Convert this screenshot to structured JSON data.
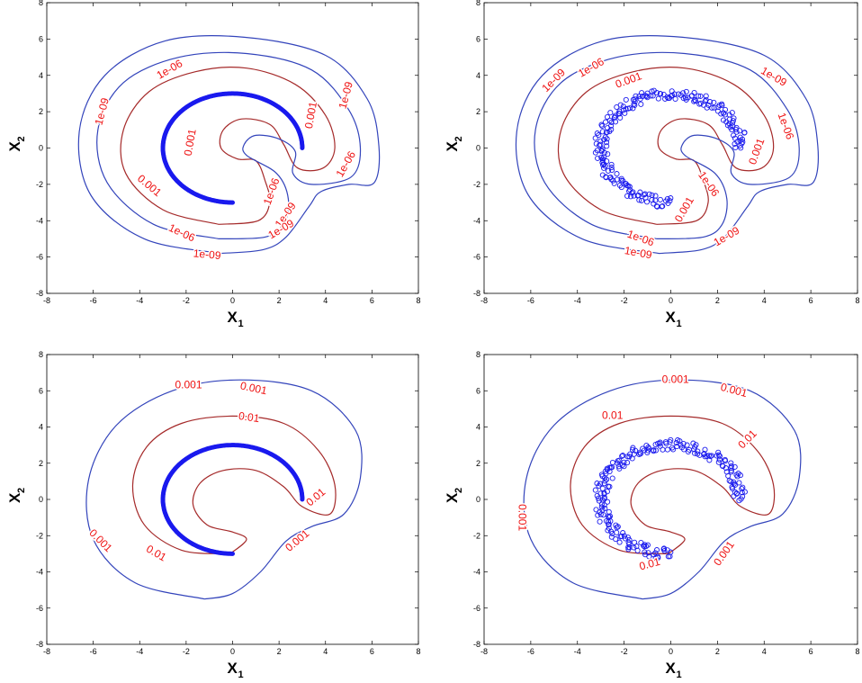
{
  "chart_data": [
    {
      "type": "contour",
      "panel": "top-left",
      "xlabel": "X",
      "xlabel_sub": "1",
      "ylabel": "X",
      "ylabel_sub": "2",
      "xlim": [
        -8,
        8
      ],
      "ylim": [
        -8,
        8
      ],
      "xticks": [
        -8,
        -6,
        -4,
        -2,
        0,
        2,
        4,
        6,
        8
      ],
      "yticks": [
        -8,
        -6,
        -4,
        -2,
        0,
        2,
        4,
        6,
        8
      ],
      "grid": false,
      "colors": {
        "inner": "#a52a2a",
        "outer": "#3344bb",
        "labels": "#ee1111",
        "points": "#1a1aee"
      },
      "noisy_points": false,
      "levels": [
        "0.001",
        "1e-06",
        "1e-09"
      ],
      "labels": [
        {
          "text": "1e-09",
          "x": -5.6,
          "y": 2.0,
          "angle": -75
        },
        {
          "text": "1e-06",
          "x": -2.7,
          "y": 4.3,
          "angle": -30
        },
        {
          "text": "0.001",
          "x": 3.4,
          "y": 1.8,
          "angle": -80
        },
        {
          "text": "1e-09",
          "x": 4.9,
          "y": 2.9,
          "angle": -75
        },
        {
          "text": "0.001",
          "x": -1.8,
          "y": 0.3,
          "angle": -80
        },
        {
          "text": "0.001",
          "x": -3.6,
          "y": -2.1,
          "angle": 40
        },
        {
          "text": "1e-06",
          "x": 4.9,
          "y": -0.9,
          "angle": -60
        },
        {
          "text": "1e-06",
          "x": 1.7,
          "y": -2.4,
          "angle": -70
        },
        {
          "text": "1e-09",
          "x": 2.3,
          "y": -3.7,
          "angle": -55
        },
        {
          "text": "1e-06",
          "x": -2.2,
          "y": -4.7,
          "angle": 25
        },
        {
          "text": "1e-09",
          "x": 2.1,
          "y": -4.5,
          "angle": -30
        },
        {
          "text": "1e-09",
          "x": -1.1,
          "y": -5.9,
          "angle": 5
        }
      ]
    },
    {
      "type": "contour",
      "panel": "top-right",
      "xlabel": "X",
      "xlabel_sub": "1",
      "ylabel": "X",
      "ylabel_sub": "2",
      "xlim": [
        -8,
        8
      ],
      "ylim": [
        -8,
        8
      ],
      "xticks": [
        -8,
        -6,
        -4,
        -2,
        0,
        2,
        4,
        6,
        8
      ],
      "yticks": [
        -8,
        -6,
        -4,
        -2,
        0,
        2,
        4,
        6,
        8
      ],
      "grid": false,
      "colors": {
        "inner": "#a52a2a",
        "outer": "#3344bb",
        "labels": "#ee1111",
        "points": "#1a1aee"
      },
      "noisy_points": true,
      "levels": [
        "0.001",
        "1e-06",
        "1e-09"
      ],
      "labels": [
        {
          "text": "1e-09",
          "x": -5.0,
          "y": 3.7,
          "angle": -45
        },
        {
          "text": "1e-06",
          "x": -3.4,
          "y": 4.4,
          "angle": -30
        },
        {
          "text": "0.001",
          "x": -1.8,
          "y": 3.7,
          "angle": -20
        },
        {
          "text": "1e-09",
          "x": 4.4,
          "y": 3.9,
          "angle": 30
        },
        {
          "text": "1e-06",
          "x": 4.9,
          "y": 1.2,
          "angle": 70
        },
        {
          "text": "0.001",
          "x": 3.7,
          "y": -0.2,
          "angle": -70
        },
        {
          "text": "1e-06",
          "x": 1.6,
          "y": -2.0,
          "angle": 55
        },
        {
          "text": "0.001",
          "x": 0.6,
          "y": -3.4,
          "angle": -60
        },
        {
          "text": "1e-06",
          "x": -1.3,
          "y": -5.0,
          "angle": 20
        },
        {
          "text": "1e-09",
          "x": 2.4,
          "y": -4.9,
          "angle": -30
        },
        {
          "text": "1e-09",
          "x": -1.4,
          "y": -5.8,
          "angle": 10
        }
      ]
    },
    {
      "type": "contour",
      "panel": "bottom-left",
      "xlabel": "X",
      "xlabel_sub": "1",
      "ylabel": "X",
      "ylabel_sub": "2",
      "xlim": [
        -8,
        8
      ],
      "ylim": [
        -8,
        8
      ],
      "xticks": [
        -8,
        -6,
        -4,
        -2,
        0,
        2,
        4,
        6,
        8
      ],
      "yticks": [
        -8,
        -6,
        -4,
        -2,
        0,
        2,
        4,
        6,
        8
      ],
      "grid": false,
      "colors": {
        "inner": "#a52a2a",
        "outer": "#3344bb",
        "labels": "#ee1111",
        "points": "#1a1aee"
      },
      "noisy_points": false,
      "levels": [
        "0.01",
        "0.001"
      ],
      "labels": [
        {
          "text": "0.001",
          "x": -1.9,
          "y": 6.3,
          "angle": 0
        },
        {
          "text": "0.001",
          "x": 0.9,
          "y": 6.1,
          "angle": 12
        },
        {
          "text": "0.01",
          "x": 0.7,
          "y": 4.5,
          "angle": 8
        },
        {
          "text": "0.01",
          "x": 3.6,
          "y": 0.1,
          "angle": -40
        },
        {
          "text": "0.001",
          "x": -5.7,
          "y": -2.3,
          "angle": 45
        },
        {
          "text": "0.01",
          "x": -3.3,
          "y": -3.0,
          "angle": 30
        },
        {
          "text": "0.001",
          "x": 2.8,
          "y": -2.3,
          "angle": -40
        }
      ]
    },
    {
      "type": "contour",
      "panel": "bottom-right",
      "xlabel": "X",
      "xlabel_sub": "1",
      "ylabel": "X",
      "ylabel_sub": "2",
      "xlim": [
        -8,
        8
      ],
      "ylim": [
        -8,
        8
      ],
      "xticks": [
        -8,
        -6,
        -4,
        -2,
        0,
        2,
        4,
        6,
        8
      ],
      "yticks": [
        -8,
        -6,
        -4,
        -2,
        0,
        2,
        4,
        6,
        8
      ],
      "grid": false,
      "colors": {
        "inner": "#a52a2a",
        "outer": "#3344bb",
        "labels": "#ee1111",
        "points": "#1a1aee"
      },
      "noisy_points": true,
      "levels": [
        "0.01",
        "0.001"
      ],
      "labels": [
        {
          "text": "0.001",
          "x": 0.2,
          "y": 6.6,
          "angle": 0
        },
        {
          "text": "0.001",
          "x": 2.7,
          "y": 6.0,
          "angle": 15
        },
        {
          "text": "0.01",
          "x": -2.5,
          "y": 4.6,
          "angle": 0
        },
        {
          "text": "0.01",
          "x": 3.3,
          "y": 3.3,
          "angle": -45
        },
        {
          "text": "0.001",
          "x": -6.4,
          "y": -1.0,
          "angle": 90
        },
        {
          "text": "0.001",
          "x": 2.3,
          "y": -3.0,
          "angle": -55
        },
        {
          "text": "0.01",
          "x": -0.9,
          "y": -3.6,
          "angle": -15
        }
      ]
    }
  ]
}
